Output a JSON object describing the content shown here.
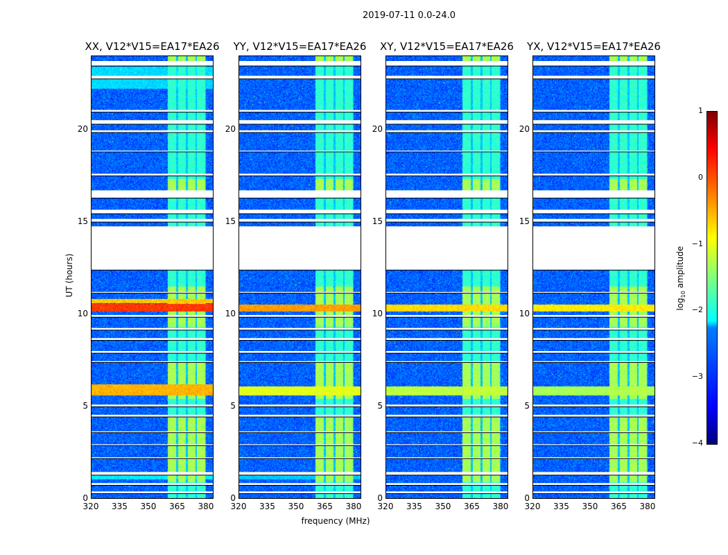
{
  "chart_data": {
    "type": "heatmap",
    "title": "2019-07-11 0.0-24.0",
    "xlabel": "frequency (MHz)",
    "ylabel": "UT (hours)",
    "xlim": [
      320,
      384
    ],
    "ylim": [
      0,
      24
    ],
    "xticks": [
      "320",
      "335",
      "350",
      "365",
      "380"
    ],
    "xtick_values": [
      320,
      335,
      350,
      365,
      380
    ],
    "yticks": [
      "0",
      "5",
      "10",
      "15",
      "20"
    ],
    "ytick_values": [
      0,
      5,
      10,
      15,
      20
    ],
    "colorbar": {
      "label": "log10 amplitude",
      "label_main": "log",
      "label_sub": "10",
      "label_rest": " amplitude",
      "range": [
        -4,
        1
      ],
      "ticks": [
        "1",
        "0",
        "−1",
        "−2",
        "−3",
        "−4"
      ],
      "tick_values": [
        1,
        0,
        -1,
        -2,
        -3,
        -4
      ],
      "colormap": "jet"
    },
    "background_level": -2.9,
    "rfi_channels": [
      [
        360,
        364.5
      ],
      [
        365.5,
        369.5
      ],
      [
        370.5,
        374.5
      ],
      [
        375.5,
        379.5
      ]
    ],
    "rfi_level": -1.9,
    "rfi_bright_times": [
      [
        0.9,
        4.4
      ],
      [
        5.4,
        7.4
      ],
      [
        9.3,
        11.5
      ],
      [
        16.6,
        17.3
      ],
      [
        23.5,
        24
      ]
    ],
    "rfi_bright_level": -1.3,
    "flagged_times": [
      [
        23.45,
        23.7
      ],
      [
        22.75,
        22.9
      ],
      [
        20.95,
        21.05
      ],
      [
        20.3,
        20.5
      ],
      [
        19.85,
        19.95
      ],
      [
        18.8,
        18.85
      ],
      [
        17.5,
        17.6
      ],
      [
        16.3,
        16.7
      ],
      [
        15.45,
        15.65
      ],
      [
        15.0,
        15.15
      ],
      [
        12.4,
        14.75
      ],
      [
        11.15,
        11.2
      ],
      [
        9.85,
        9.95
      ],
      [
        9.15,
        9.25
      ],
      [
        8.6,
        8.7
      ],
      [
        7.9,
        8.0
      ],
      [
        7.4,
        7.45
      ],
      [
        5.0,
        5.1
      ],
      [
        4.45,
        4.55
      ],
      [
        3.6,
        3.65
      ],
      [
        2.9,
        2.95
      ],
      [
        2.2,
        2.25
      ],
      [
        1.3,
        1.45
      ],
      [
        0.75,
        0.85
      ],
      [
        0.3,
        0.4
      ]
    ],
    "panels": [
      {
        "title": "XX, V12*V15=EA17*EA26",
        "bands": [
          {
            "t": [
              10.15,
              10.55
            ],
            "level": 0.1
          },
          {
            "t": [
              10.6,
              10.8
            ],
            "level": -0.6
          },
          {
            "t": [
              5.6,
              6.2
            ],
            "level": -0.5
          },
          {
            "t": [
              1.05,
              1.3
            ],
            "level": -2.2
          },
          {
            "t": [
              22.2,
              23.4
            ],
            "level": -2.3
          }
        ]
      },
      {
        "title": "YY, V12*V15=EA17*EA26",
        "bands": [
          {
            "t": [
              10.15,
              10.5
            ],
            "level": -0.4
          },
          {
            "t": [
              5.6,
              6.1
            ],
            "level": -1.0
          },
          {
            "t": [
              1.05,
              1.3
            ],
            "level": -2.4
          }
        ]
      },
      {
        "title": "XY, V12*V15=EA17*EA26",
        "bands": [
          {
            "t": [
              10.15,
              10.5
            ],
            "level": -0.7
          },
          {
            "t": [
              5.6,
              6.1
            ],
            "level": -1.2
          }
        ]
      },
      {
        "title": "YX, V12*V15=EA17*EA26",
        "bands": [
          {
            "t": [
              10.15,
              10.5
            ],
            "level": -0.8
          },
          {
            "t": [
              5.6,
              6.1
            ],
            "level": -1.3
          }
        ]
      }
    ]
  }
}
